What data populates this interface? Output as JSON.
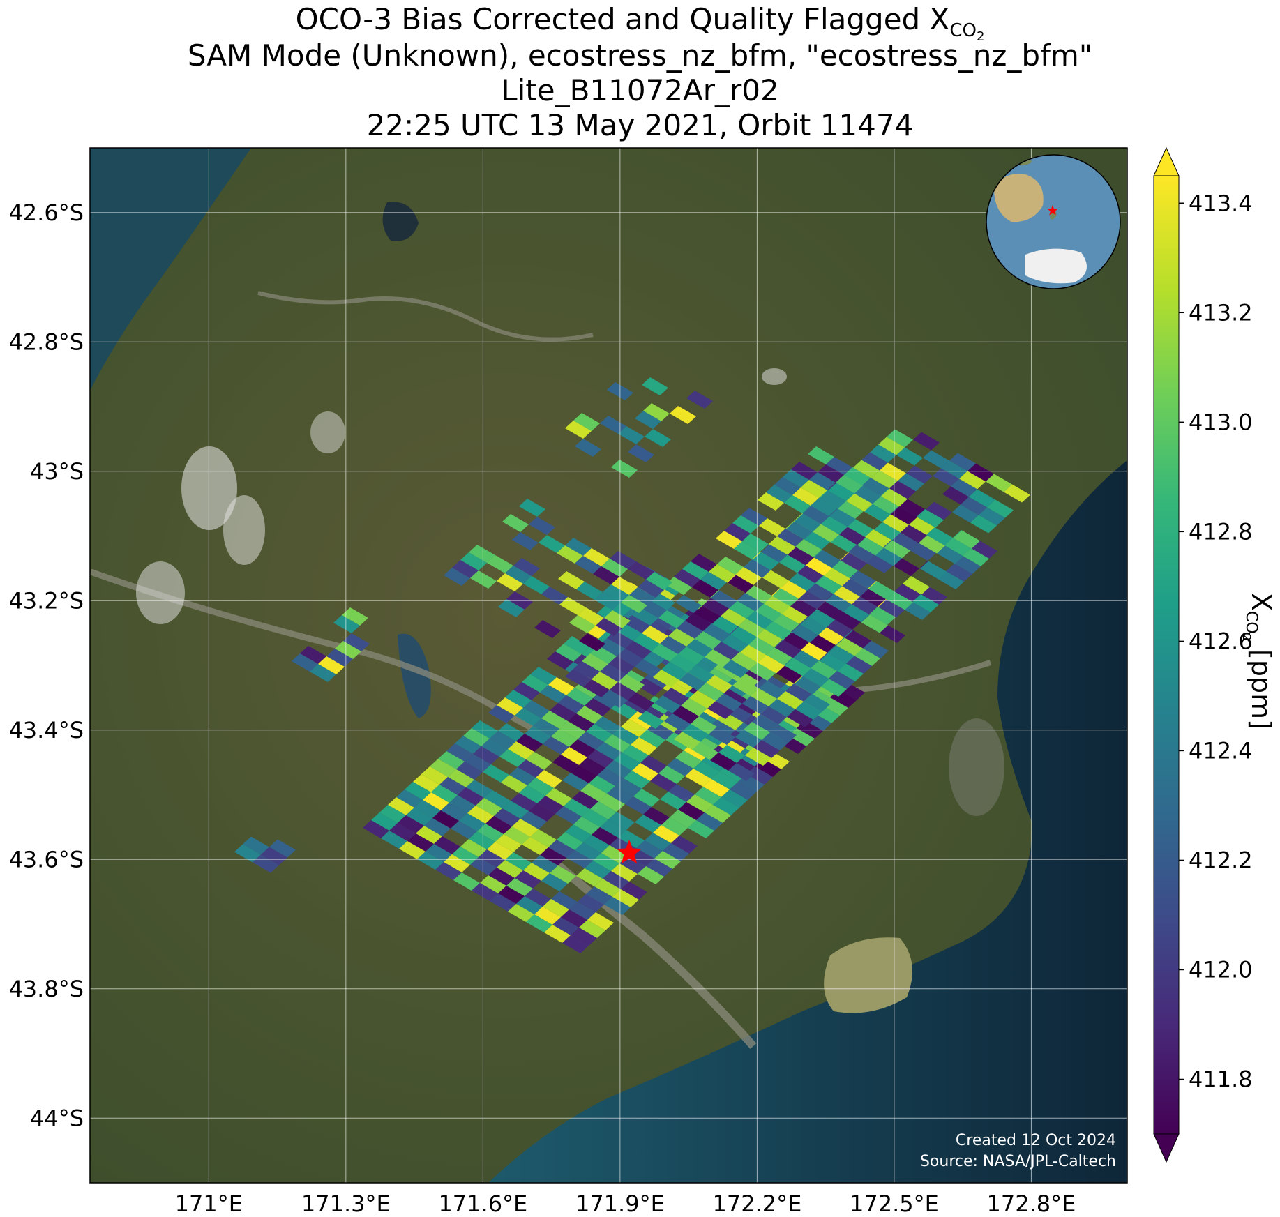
{
  "title": {
    "line1_prefix": "OCO-3 Bias Corrected and Quality Flagged X",
    "line1_sub": "CO",
    "line1_subsub": "2",
    "line2": "SAM Mode (Unknown), ecostress_nz_bfm, \"ecostress_nz_bfm\"",
    "line3": "Lite_B11072Ar_r02",
    "line4": "22:25 UTC 13 May 2021, Orbit 11474"
  },
  "map": {
    "lon_range": [
      170.74,
      173.01
    ],
    "lat_range": [
      -44.1,
      -42.5
    ],
    "lon_ticks": [
      {
        "value": 171.0,
        "label": "171°E"
      },
      {
        "value": 171.3,
        "label": "171.3°E"
      },
      {
        "value": 171.6,
        "label": "171.6°E"
      },
      {
        "value": 171.9,
        "label": "171.9°E"
      },
      {
        "value": 172.2,
        "label": "172.2°E"
      },
      {
        "value": 172.5,
        "label": "172.5°E"
      },
      {
        "value": 172.8,
        "label": "172.8°E"
      }
    ],
    "lat_ticks": [
      {
        "value": -42.6,
        "label": "42.6°S"
      },
      {
        "value": -42.8,
        "label": "42.8°S"
      },
      {
        "value": -43.0,
        "label": "43°S"
      },
      {
        "value": -43.2,
        "label": "43.2°S"
      },
      {
        "value": -43.4,
        "label": "43.4°S"
      },
      {
        "value": -43.6,
        "label": "43.6°S"
      },
      {
        "value": -43.8,
        "label": "43.8°S"
      },
      {
        "value": -44.0,
        "label": "44°S"
      }
    ],
    "grid": true,
    "target": {
      "lon": 171.92,
      "lat": -43.59,
      "marker": "red-star"
    },
    "inset": {
      "type": "globe",
      "position": "top-right",
      "marker": "red-star"
    },
    "colors": {
      "land": "#4f5a33",
      "ocean": "#12304a",
      "lake": "#9a9a66",
      "target": "#ff0000"
    }
  },
  "colorbar": {
    "min": 411.7,
    "max": 413.45,
    "ticks": [
      411.8,
      412.0,
      412.2,
      412.4,
      412.6,
      412.8,
      413.0,
      413.2,
      413.4
    ],
    "tick_labels": [
      "411.8",
      "412.0",
      "412.2",
      "412.4",
      "412.6",
      "412.8",
      "413.0",
      "413.2",
      "413.4"
    ],
    "label_prefix": "X",
    "label_sub": "CO",
    "label_subsub": "2",
    "label_suffix": " [ppm]",
    "colormap": "viridis",
    "extend": "both"
  },
  "footer": {
    "created": "Created 12 Oct 2024",
    "source": "Source: NASA/JPL-Caltech"
  }
}
